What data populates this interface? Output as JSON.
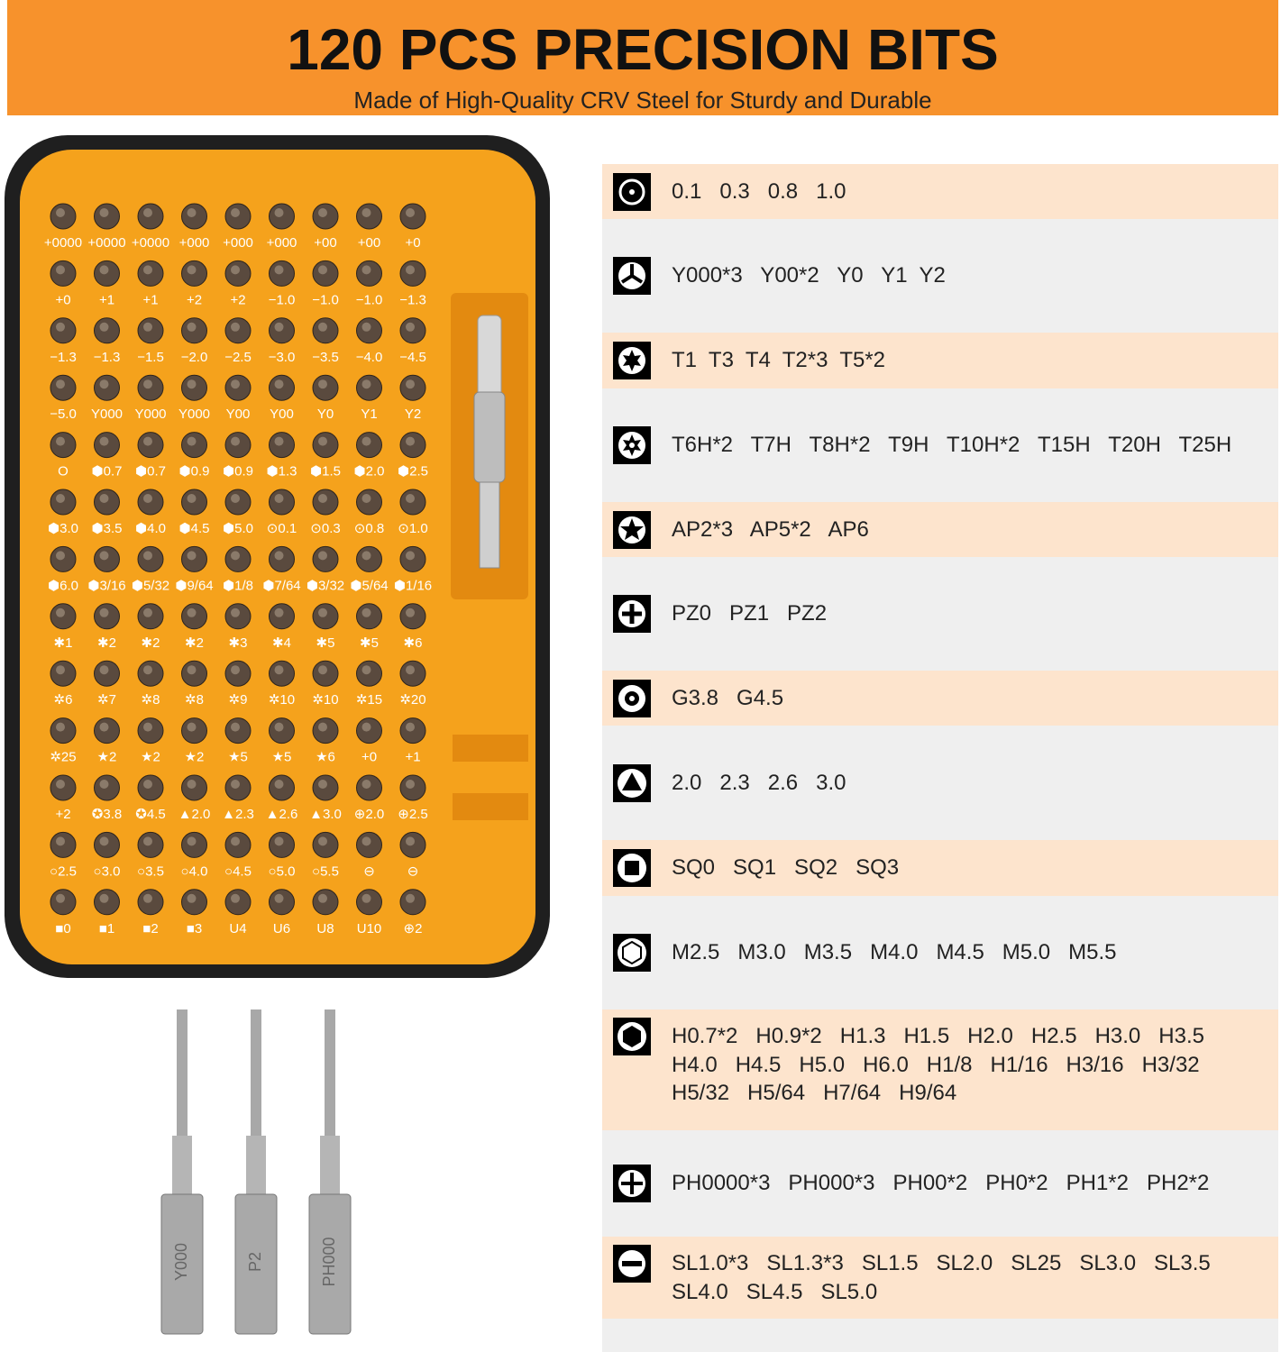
{
  "header": {
    "title": "120 PCS PRECISION BITS",
    "subtitle": "Made of High-Quality CRV Steel for Sturdy and Durable"
  },
  "tray": {
    "rows": [
      [
        "+0000",
        "+0000",
        "+0000",
        "+000",
        "+000",
        "+000",
        "+00",
        "+00",
        "+0"
      ],
      [
        "+0",
        "+1",
        "+1",
        "+2",
        "+2",
        "−1.0",
        "−1.0",
        "−1.0",
        "−1.3"
      ],
      [
        "−1.3",
        "−1.3",
        "−1.5",
        "−2.0",
        "−2.5",
        "−3.0",
        "−3.5",
        "−4.0",
        "−4.5"
      ],
      [
        "−5.0",
        "Y000",
        "Y000",
        "Y000",
        "Y00",
        "Y00",
        "Y0",
        "Y1",
        "Y2"
      ],
      [
        "O",
        "⬢0.7",
        "⬢0.7",
        "⬢0.9",
        "⬢0.9",
        "⬢1.3",
        "⬢1.5",
        "⬢2.0",
        "⬢2.5"
      ],
      [
        "⬢3.0",
        "⬢3.5",
        "⬢4.0",
        "⬢4.5",
        "⬢5.0",
        "⊙0.1",
        "⊙0.3",
        "⊙0.8",
        "⊙1.0"
      ],
      [
        "⬢6.0",
        "⬢3/16",
        "⬢5/32",
        "⬢9/64",
        "⬢1/8",
        "⬢7/64",
        "⬢3/32",
        "⬢5/64",
        "⬢1/16"
      ],
      [
        "✱1",
        "✱2",
        "✱2",
        "✱2",
        "✱3",
        "✱4",
        "✱5",
        "✱5",
        "✱6"
      ],
      [
        "✲6",
        "✲7",
        "✲8",
        "✲8",
        "✲9",
        "✲10",
        "✲10",
        "✲15",
        "✲20"
      ],
      [
        "✲25",
        "★2",
        "★2",
        "★2",
        "★5",
        "★5",
        "★6",
        "+0",
        "+1"
      ],
      [
        "+2",
        "✪3.8",
        "✪4.5",
        "▲2.0",
        "▲2.3",
        "▲2.6",
        "▲3.0",
        "⊕2.0",
        "⊕2.5"
      ],
      [
        "○2.5",
        "○3.0",
        "○3.5",
        "○4.0",
        "○4.5",
        "○5.0",
        "○5.5",
        "⊖",
        "⊖"
      ],
      [
        "■0",
        "■1",
        "■2",
        "■3",
        "U4",
        "U6",
        "U8",
        "U10",
        "⊕2"
      ]
    ]
  },
  "drivers": [
    "Y000",
    "P2",
    "PH000"
  ],
  "list": [
    {
      "lines": [
        "0.1   0.3   0.8   1.0"
      ]
    },
    {
      "lines": [
        "Y000*3   Y00*2   Y0   Y1  Y2"
      ]
    },
    {
      "lines": [
        "T1  T3  T4  T2*3  T5*2"
      ]
    },
    {
      "lines": [
        "T6H*2   T7H   T8H*2   T9H   T10H*2   T15H   T20H   T25H"
      ]
    },
    {
      "lines": [
        "AP2*3   AP5*2   AP6"
      ]
    },
    {
      "lines": [
        "PZ0   PZ1   PZ2"
      ]
    },
    {
      "lines": [
        "G3.8   G4.5"
      ]
    },
    {
      "lines": [
        "2.0   2.3   2.6   3.0"
      ]
    },
    {
      "lines": [
        "SQ0   SQ1   SQ2   SQ3"
      ]
    },
    {
      "lines": [
        "M2.5   M3.0   M3.5   M4.0   M4.5   M5.0   M5.5"
      ]
    },
    {
      "lines": [
        "H0.7*2   H0.9*2   H1.3   H1.5   H2.0   H2.5   H3.0   H3.5",
        "H4.0   H4.5   H5.0   H6.0   H1/8   H1/16   H3/16   H3/32",
        "H5/32   H5/64   H7/64   H9/64"
      ]
    },
    {
      "lines": [
        "PH0000*3   PH000*3   PH00*2   PH0*2   PH1*2   PH2*2"
      ]
    },
    {
      "lines": [
        "SL1.0*3   SL1.3*3   SL1.5   SL2.0   SL25   SL3.0   SL3.5",
        "SL4.0   SL4.5   SL5.0"
      ]
    }
  ]
}
